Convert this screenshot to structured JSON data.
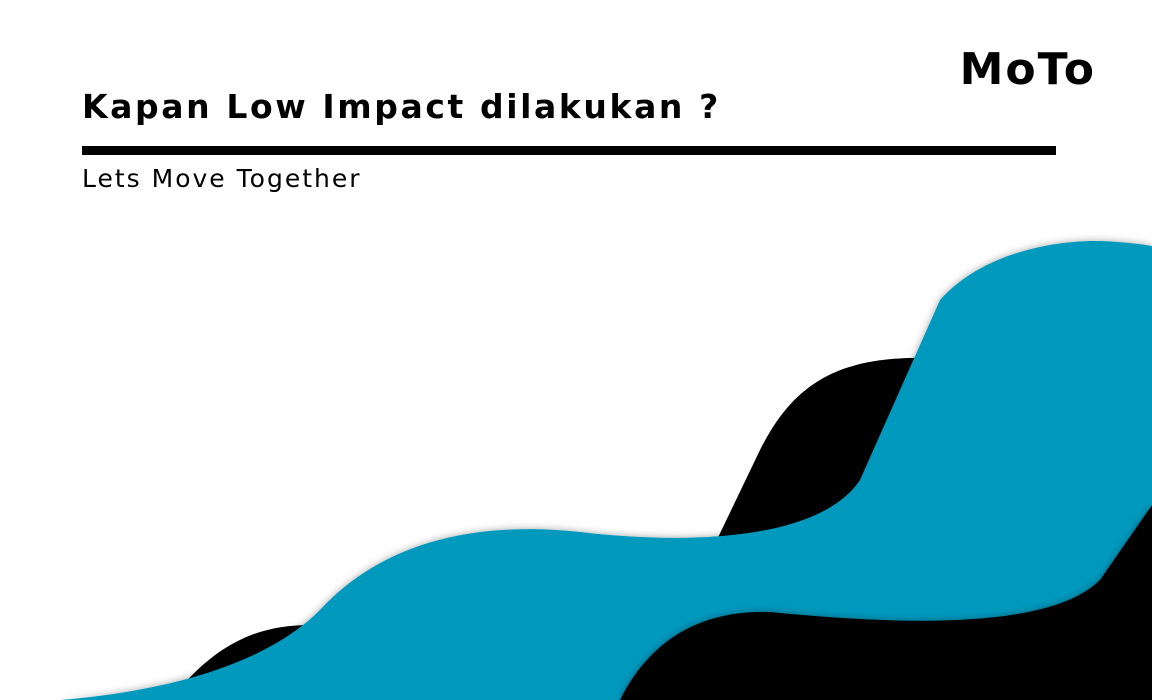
{
  "header": {
    "brand": "MoTo",
    "title": "Kapan Low Impact dilakukan ?",
    "subtitle": "Lets Move Together"
  },
  "colors": {
    "background": "#ffffff",
    "primary": "#000000",
    "accent": "#0399be"
  },
  "decoration": {
    "waves": [
      "black-wave",
      "blue-wave",
      "black-wave",
      "blue-wave"
    ]
  }
}
